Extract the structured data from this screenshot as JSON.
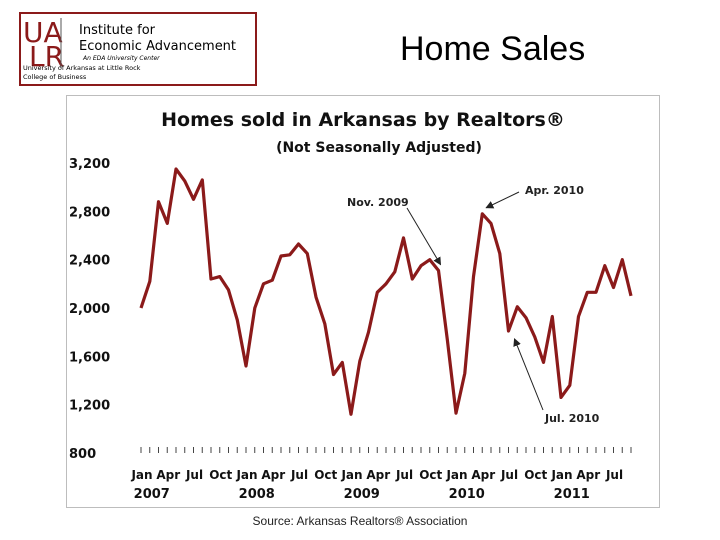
{
  "header": {
    "logo": {
      "letters": "UALR",
      "line1": "Institute for",
      "line2": "Economic Advancement",
      "tagline": "An EDA University Center",
      "university": "University of Arkansas at Little Rock",
      "college": "College of Business"
    },
    "title": "Home Sales"
  },
  "footer": {
    "source": "Source:  Arkansas Realtors® Association"
  },
  "chart_data": {
    "type": "line",
    "title": "Homes sold in Arkansas by Realtors®",
    "subtitle": "(Not Seasonally  Adjusted)",
    "xlabel": "",
    "ylabel": "",
    "ylim": [
      800,
      3200
    ],
    "yticks": [
      "3,200",
      "2,800",
      "2,400",
      "2,000",
      "1,600",
      "1,200",
      "800"
    ],
    "ytick_values": [
      3200,
      2800,
      2400,
      2000,
      1600,
      1200,
      800
    ],
    "month_tick_labels": [
      "Jan",
      "Apr",
      "Jul",
      "Oct",
      "Jan",
      "Apr",
      "Jul",
      "Oct",
      "Jan",
      "Apr",
      "Jul",
      "Oct",
      "Jan",
      "Apr",
      "Jul",
      "Oct",
      "Jan",
      "Apr",
      "Jul"
    ],
    "month_tick_index": [
      0,
      3,
      6,
      9,
      12,
      15,
      18,
      21,
      24,
      27,
      30,
      33,
      36,
      39,
      42,
      45,
      48,
      51,
      54
    ],
    "year_labels": [
      "2007",
      "2008",
      "2009",
      "2010",
      "2011"
    ],
    "year_label_index": [
      1,
      13,
      25,
      37,
      49
    ],
    "grid": false,
    "legend": "none",
    "line_color": "#8b1a1a",
    "series": [
      {
        "values": [
          2000,
          2220,
          2880,
          2700,
          3150,
          3050,
          2900,
          3060,
          2240,
          2260,
          2150,
          1900,
          1520,
          2000,
          2200,
          2230,
          2430,
          2440,
          2530,
          2450,
          2090,
          1870,
          1450,
          1550,
          1120,
          1560,
          1800,
          2130,
          2200,
          2300,
          2580,
          2240,
          2350,
          2400,
          2310,
          1740,
          1130,
          1460,
          2260,
          2780,
          2700,
          2450,
          1810,
          2010,
          1920,
          1760,
          1550,
          1930,
          1260,
          1360,
          1930,
          2130,
          2130,
          2350,
          2170,
          2400,
          2100
        ]
      }
    ],
    "annotations": [
      {
        "text": "Nov. 2009",
        "index": 34
      },
      {
        "text": "Apr. 2010",
        "index": 39
      },
      {
        "text": "Jul. 2010",
        "index": 42
      }
    ]
  }
}
